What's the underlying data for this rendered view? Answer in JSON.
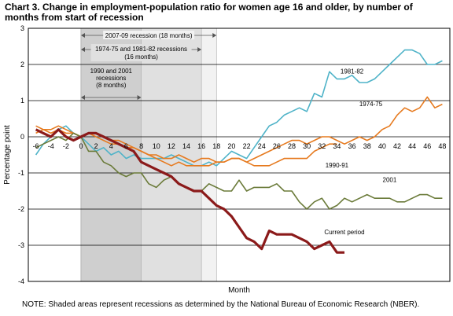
{
  "title": "Chart 3. Change in employment-population ratio for women age 16 and older, by number of months from start of recession",
  "note": "NOTE: Shaded areas represent recessions as determined by the National Bureau of Economic Research (NBER).",
  "chart_data": {
    "type": "line",
    "xlabel": "Month",
    "ylabel": "Percentage point",
    "xlim": [
      -7,
      49
    ],
    "ylim": [
      -4,
      3
    ],
    "x_ticks": [
      "-6",
      "-4",
      "-2",
      "0",
      "2",
      "4",
      "6",
      "8",
      "10",
      "12",
      "14",
      "16",
      "18",
      "20",
      "22",
      "24",
      "26",
      "28",
      "30",
      "32",
      "34",
      "36",
      "38",
      "40",
      "42",
      "44",
      "46",
      "48"
    ],
    "y_ticks": [
      "-4",
      "-3",
      "-2",
      "-1",
      "0",
      "1",
      "2",
      "3"
    ],
    "grid": "horizontal",
    "shaded_regions": [
      {
        "label": "2007-09 recession (18 months)",
        "start": 0,
        "end": 18
      },
      {
        "label": "1974-75 and 1981-82 recessions (16 months)",
        "start": 0,
        "end": 16
      },
      {
        "label_lines": [
          "1990 and 2001",
          "recessions",
          "(8 months)"
        ],
        "start": 0,
        "end": 8
      }
    ],
    "series": [
      {
        "name": "1981-82",
        "color": "#4fb3c8",
        "x": [
          -6,
          -5,
          -4,
          -3,
          -2,
          -1,
          0,
          1,
          2,
          3,
          4,
          5,
          6,
          7,
          8,
          9,
          10,
          11,
          12,
          13,
          14,
          15,
          16,
          17,
          18,
          19,
          20,
          21,
          22,
          23,
          24,
          25,
          26,
          27,
          28,
          29,
          30,
          31,
          32,
          33,
          34,
          35,
          36,
          37,
          38,
          39,
          40,
          41,
          42,
          43,
          44,
          45,
          46,
          47,
          48
        ],
        "y": [
          -0.5,
          -0.2,
          0,
          0.2,
          0.3,
          0.1,
          0,
          -0.2,
          -0.4,
          -0.3,
          -0.5,
          -0.4,
          -0.6,
          -0.5,
          -0.6,
          -0.6,
          -0.6,
          -0.6,
          -0.5,
          -0.6,
          -0.7,
          -0.8,
          -0.8,
          -0.7,
          -0.8,
          -0.6,
          -0.4,
          -0.5,
          -0.6,
          -0.3,
          0,
          0.3,
          0.4,
          0.6,
          0.7,
          0.8,
          0.7,
          1.2,
          1.1,
          1.8,
          1.6,
          1.6,
          1.7,
          1.5,
          1.5,
          1.6,
          1.8,
          2.0,
          2.2,
          2.4,
          2.4,
          2.3,
          2.0,
          2.0,
          2.1
        ]
      },
      {
        "name": "1974-75",
        "color": "#e67a1f",
        "x": [
          -6,
          -5,
          -4,
          -3,
          -2,
          -1,
          0,
          1,
          2,
          3,
          4,
          5,
          6,
          7,
          8,
          9,
          10,
          11,
          12,
          13,
          14,
          15,
          16,
          17,
          18,
          19,
          20,
          21,
          22,
          23,
          24,
          25,
          26,
          27,
          28,
          29,
          30,
          31,
          32,
          33,
          34,
          35,
          36,
          37,
          38,
          39,
          40,
          41,
          42,
          43,
          44,
          45,
          46,
          47,
          48
        ],
        "y": [
          0.1,
          0.2,
          0.2,
          0.3,
          0.2,
          0.1,
          0,
          0.1,
          0.1,
          0,
          -0.1,
          -0.1,
          -0.2,
          -0.3,
          -0.4,
          -0.5,
          -0.6,
          -0.7,
          -0.8,
          -0.7,
          -0.8,
          -0.8,
          -0.8,
          -0.8,
          -0.7,
          -0.7,
          -0.6,
          -0.6,
          -0.7,
          -0.6,
          -0.5,
          -0.4,
          -0.3,
          -0.2,
          -0.1,
          -0.1,
          -0.2,
          -0.1,
          0,
          0,
          -0.1,
          -0.2,
          -0.1,
          0,
          -0.1,
          0,
          0.2,
          0.3,
          0.6,
          0.8,
          0.7,
          0.8,
          1.1,
          0.8,
          0.9
        ]
      },
      {
        "name": "1990-91",
        "color": "#e67a1f",
        "x": [
          -6,
          -5,
          -4,
          -3,
          -2,
          -1,
          0,
          1,
          2,
          3,
          4,
          5,
          6,
          7,
          8,
          9,
          10,
          11,
          12,
          13,
          14,
          15,
          16,
          17,
          18,
          19,
          20,
          21,
          22,
          23,
          24,
          25,
          26,
          27,
          28,
          29,
          30,
          31,
          32,
          33,
          34
        ],
        "y": [
          0.3,
          0.2,
          0.1,
          0.2,
          0.1,
          0.1,
          0,
          0.1,
          0,
          -0.1,
          -0.2,
          -0.2,
          -0.3,
          -0.3,
          -0.4,
          -0.5,
          -0.5,
          -0.6,
          -0.6,
          -0.5,
          -0.6,
          -0.7,
          -0.6,
          -0.6,
          -0.7,
          -0.7,
          -0.6,
          -0.6,
          -0.7,
          -0.8,
          -0.8,
          -0.8,
          -0.7,
          -0.6,
          -0.6,
          -0.6,
          -0.6,
          -0.4,
          -0.3,
          -0.2,
          -0.2
        ]
      },
      {
        "name": "2001",
        "color": "#6b7b3a",
        "x": [
          -6,
          -5,
          -4,
          -3,
          -2,
          -1,
          0,
          1,
          2,
          3,
          4,
          5,
          6,
          7,
          8,
          9,
          10,
          11,
          12,
          13,
          14,
          15,
          16,
          17,
          18,
          19,
          20,
          21,
          22,
          23,
          24,
          25,
          26,
          27,
          28,
          29,
          30,
          31,
          32,
          33,
          34,
          35,
          36,
          37,
          38,
          39,
          40,
          41,
          42,
          43,
          44,
          45,
          46,
          47,
          48
        ],
        "y": [
          -0.3,
          -0.2,
          -0.1,
          0,
          -0.1,
          0.1,
          0,
          -0.4,
          -0.4,
          -0.7,
          -0.8,
          -1.0,
          -1.1,
          -1.0,
          -1.0,
          -1.3,
          -1.4,
          -1.2,
          -1.1,
          -1.3,
          -1.4,
          -1.5,
          -1.5,
          -1.3,
          -1.4,
          -1.5,
          -1.5,
          -1.2,
          -1.5,
          -1.4,
          -1.4,
          -1.4,
          -1.3,
          -1.5,
          -1.5,
          -1.8,
          -2.0,
          -1.8,
          -1.7,
          -2.0,
          -1.9,
          -1.7,
          -1.8,
          -1.7,
          -1.6,
          -1.7,
          -1.7,
          -1.7,
          -1.8,
          -1.8,
          -1.7,
          -1.6,
          -1.6,
          -1.7,
          -1.7
        ]
      },
      {
        "name": "Current period",
        "color": "#8b1a1a",
        "x": [
          -6,
          -5,
          -4,
          -3,
          -2,
          -1,
          0,
          1,
          2,
          3,
          4,
          5,
          6,
          7,
          8,
          9,
          10,
          11,
          12,
          13,
          14,
          15,
          16,
          17,
          18,
          19,
          20,
          21,
          22,
          23,
          24,
          25,
          26,
          27,
          28,
          29,
          30,
          31,
          32,
          33,
          34,
          35
        ],
        "y": [
          0.2,
          0.1,
          0,
          0.2,
          0,
          -0.1,
          0,
          0.1,
          0.1,
          0,
          -0.1,
          -0.2,
          -0.3,
          -0.4,
          -0.7,
          -0.8,
          -0.9,
          -1.0,
          -1.1,
          -1.3,
          -1.4,
          -1.5,
          -1.5,
          -1.7,
          -1.9,
          -2.0,
          -2.2,
          -2.5,
          -2.8,
          -2.9,
          -3.1,
          -2.6,
          -2.7,
          -2.7,
          -2.7,
          -2.8,
          -2.9,
          -3.1,
          -3.0,
          -2.9,
          -3.2,
          -3.2
        ]
      }
    ],
    "series_labels": [
      "1981-82",
      "1974-75",
      "1990-91",
      "2001",
      "Current period"
    ]
  }
}
